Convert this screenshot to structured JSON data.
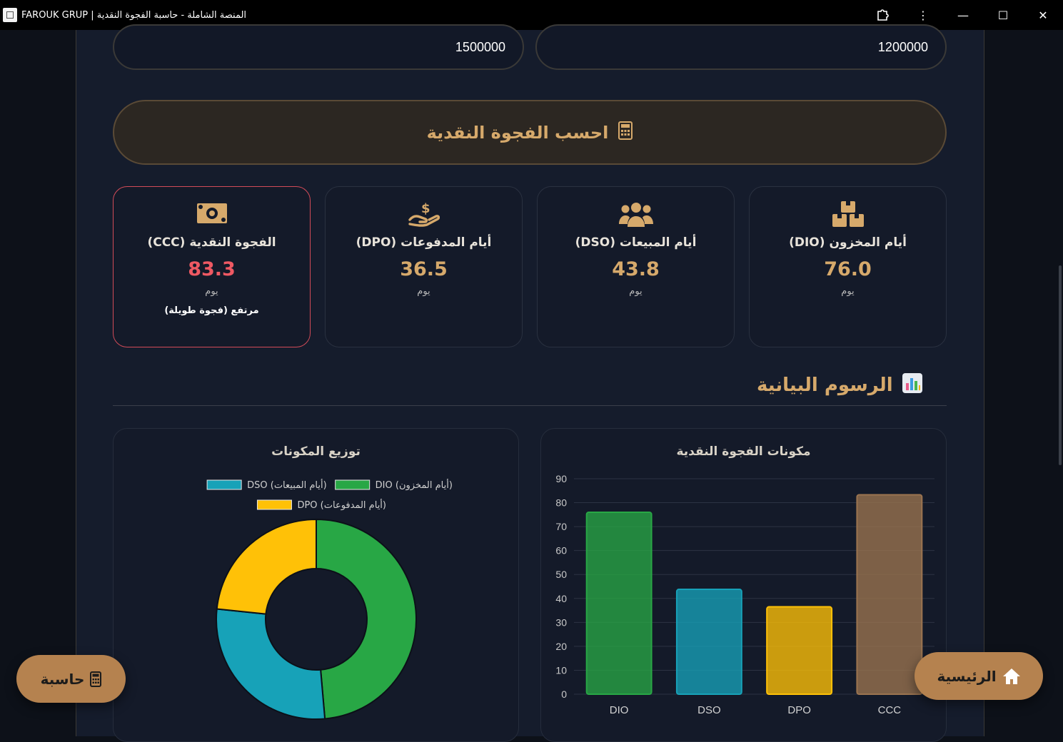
{
  "window": {
    "title": "FAROUK GRUP | المنصة الشاملة - حاسبة الفجوة النقدية",
    "controls": {
      "extensions": "extensions-icon",
      "menu": "⋮",
      "minimize": "—",
      "maximize": "☐",
      "close": "✕"
    }
  },
  "inputs": {
    "left_value": "1500000",
    "right_value": "1200000"
  },
  "calculate_button": {
    "label": "احسب الفجوة النقدية",
    "icon": "calculator-icon"
  },
  "cards": [
    {
      "key": "dio",
      "title": "أيام المخزون (DIO)",
      "value": "76.0",
      "unit": "يوم",
      "icon": "boxes-icon"
    },
    {
      "key": "dso",
      "title": "أيام المبيعات (DSO)",
      "value": "43.8",
      "unit": "يوم",
      "icon": "users-icon"
    },
    {
      "key": "dpo",
      "title": "أيام المدفوعات (DPO)",
      "value": "36.5",
      "unit": "يوم",
      "icon": "hand-dollar-icon"
    },
    {
      "key": "ccc",
      "title": "الفجوة النقدية (CCC)",
      "value": "83.3",
      "unit": "يوم",
      "status": "مرتفع (فجوة طويلة)",
      "icon": "money-bill-icon"
    }
  ],
  "charts_section": {
    "title": "الرسوم البيانية",
    "icon": "chart-icon"
  },
  "colors": {
    "dio": "#28a745",
    "dso": "#17a2b8",
    "dpo": "#ffc107",
    "ccc": "#9b7450",
    "accent": "#d6a96b",
    "alert": "#ef5963"
  },
  "chart_data": [
    {
      "type": "bar",
      "title": "مكونات الفجوة النقدية",
      "categories": [
        "DIO",
        "DSO",
        "DPO",
        "CCC"
      ],
      "values": [
        76.0,
        43.8,
        36.5,
        83.3
      ],
      "xlabel": "",
      "ylabel": "",
      "ylim": [
        0,
        90
      ],
      "yticks": [
        0,
        10,
        20,
        30,
        40,
        50,
        60,
        70,
        80,
        90
      ],
      "grid": true
    },
    {
      "type": "pie",
      "title": "توزيع المكونات",
      "donut": true,
      "labels": [
        "DIO (أيام المخزون)",
        "DSO (أيام المبيعات)",
        "DPO (أيام المدفوعات)"
      ],
      "values": [
        76.0,
        43.8,
        36.5
      ],
      "legend": "top"
    }
  ],
  "fabs": {
    "home_label": "الرئيسية",
    "home_icon": "home-icon",
    "calc_label": "حاسبة",
    "calc_icon": "calculator-icon"
  }
}
